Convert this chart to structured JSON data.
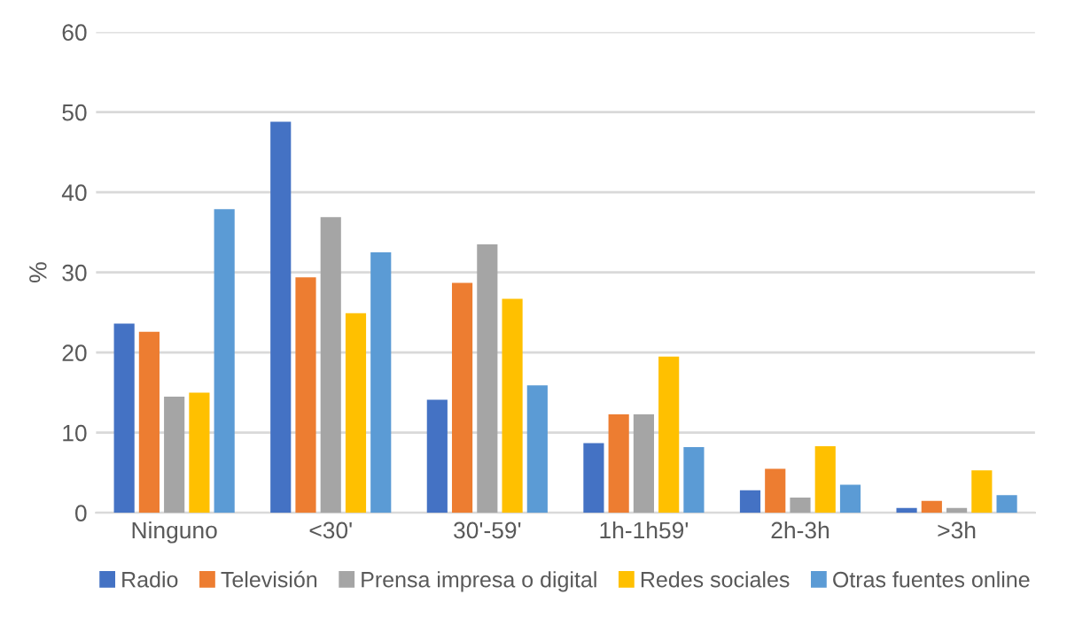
{
  "chart_data": {
    "type": "bar",
    "ylabel": "%",
    "categories": [
      "Ninguno",
      "<30'",
      "30'-59'",
      "1h-1h59'",
      "2h-3h",
      ">3h"
    ],
    "series": [
      {
        "name": "Radio",
        "color": "#4472c4",
        "values": [
          23.6,
          48.8,
          14.1,
          8.7,
          2.8,
          0.6
        ]
      },
      {
        "name": "Televisión",
        "color": "#ed7d31",
        "values": [
          22.6,
          29.4,
          28.7,
          12.3,
          5.5,
          1.5
        ]
      },
      {
        "name": "Prensa impresa o digital",
        "color": "#a5a5a5",
        "values": [
          14.5,
          36.9,
          33.5,
          12.3,
          1.9,
          0.6
        ]
      },
      {
        "name": "Redes sociales",
        "color": "#ffc000",
        "values": [
          15.0,
          24.9,
          26.7,
          19.5,
          8.3,
          5.3
        ]
      },
      {
        "name": "Otras fuentes online",
        "color": "#5b9bd5",
        "values": [
          37.9,
          32.5,
          15.9,
          8.2,
          3.5,
          2.2
        ]
      }
    ],
    "ylim": [
      0,
      60
    ],
    "yticks": [
      0,
      10,
      20,
      30,
      40,
      50,
      60
    ],
    "grid": "y",
    "legend": "bottom"
  }
}
